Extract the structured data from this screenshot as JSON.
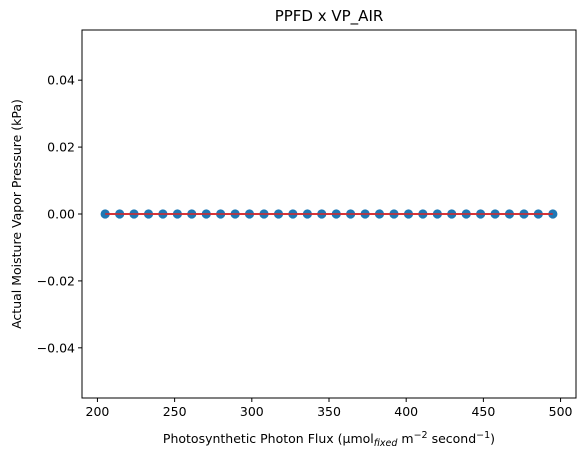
{
  "chart_data": {
    "type": "scatter",
    "title": "PPFD x VP_AIR",
    "xlabel": {
      "prefix": "Photosynthetic Photon Flux (μmol",
      "sub": "fixed",
      "mid": " m",
      "sup1": "−2",
      "mid2": " second",
      "sup2": "−1",
      "suffix": ")"
    },
    "ylabel": "Actual Moisture Vapor Pressure (kPa)",
    "xlim": [
      190,
      510
    ],
    "ylim": [
      -0.055,
      0.055
    ],
    "xticks": [
      200,
      250,
      300,
      350,
      400,
      450,
      500
    ],
    "xtick_labels": [
      "200",
      "250",
      "300",
      "350",
      "400",
      "450",
      "500"
    ],
    "yticks": [
      -0.04,
      -0.02,
      0.0,
      0.02,
      0.04
    ],
    "ytick_labels": [
      "−0.04",
      "−0.02",
      "0.00",
      "0.02",
      "0.04"
    ],
    "grid": false,
    "series": [
      {
        "kind": "points",
        "color": "#1f77b4",
        "x": [
          205,
          214.4,
          223.7,
          233.1,
          242.4,
          251.8,
          261.1,
          270.5,
          279.8,
          289.2,
          298.5,
          307.9,
          317.3,
          326.6,
          336,
          345.3,
          354.7,
          364,
          373.4,
          382.7,
          392.1,
          401.5,
          410.8,
          420.2,
          429.5,
          438.9,
          448.2,
          457.6,
          466.9,
          476.3,
          485.6,
          495
        ],
        "y": [
          0,
          0,
          0,
          0,
          0,
          0,
          0,
          0,
          0,
          0,
          0,
          0,
          0,
          0,
          0,
          0,
          0,
          0,
          0,
          0,
          0,
          0,
          0,
          0,
          0,
          0,
          0,
          0,
          0,
          0,
          0,
          0
        ]
      },
      {
        "kind": "fit-line",
        "color": "#d62728",
        "x": [
          205,
          495
        ],
        "y": [
          0,
          0
        ]
      }
    ]
  }
}
